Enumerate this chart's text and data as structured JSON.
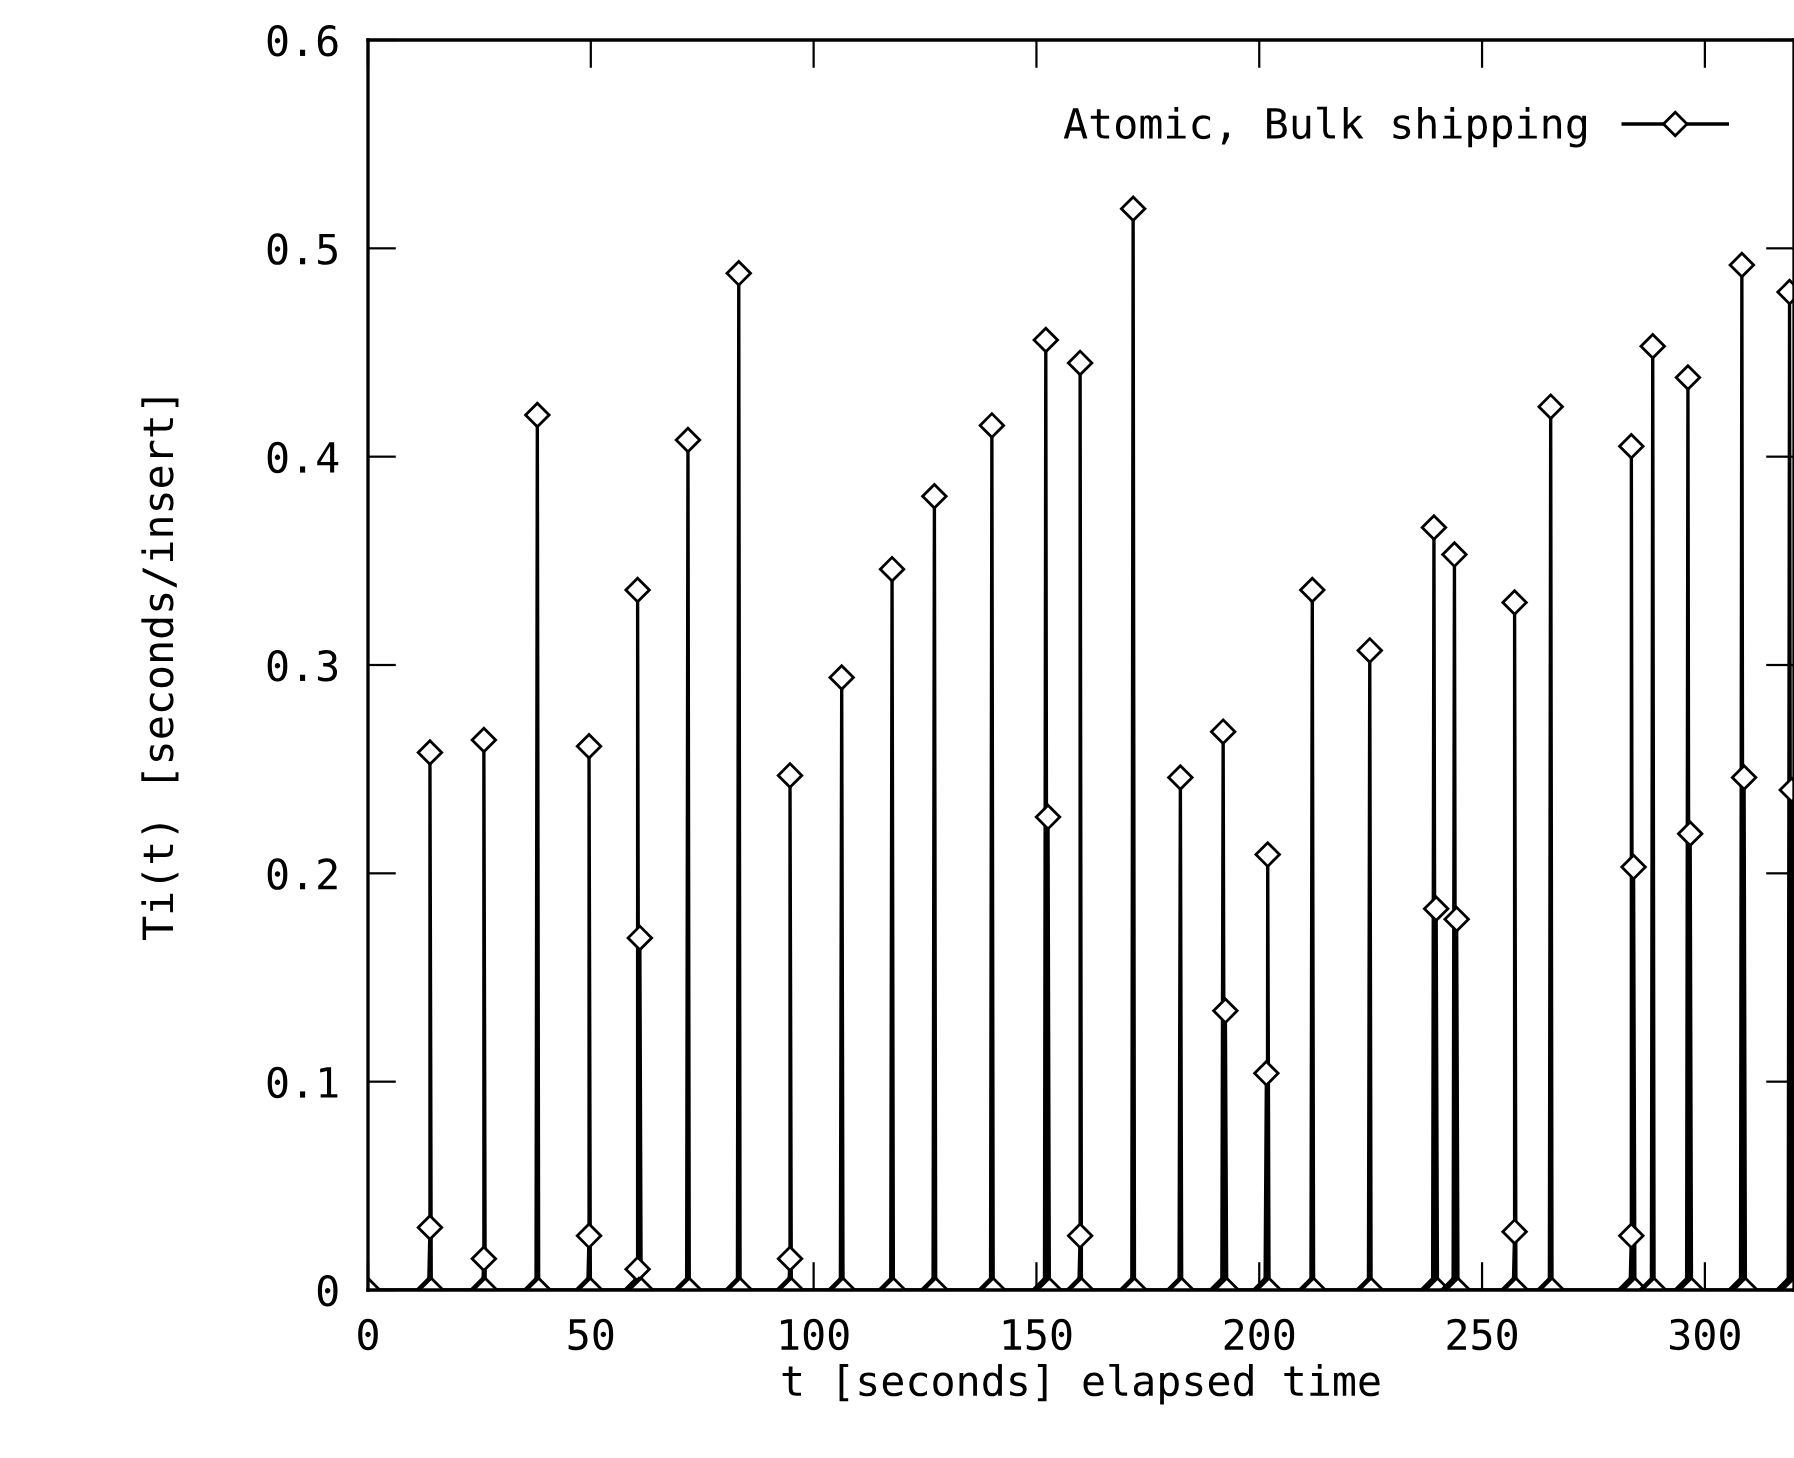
{
  "chart_data": {
    "type": "line",
    "xlabel": "t [seconds] elapsed time",
    "ylabel": "Ti(t) [seconds/insert]",
    "xlim": [
      0,
      320
    ],
    "xticks": [
      0,
      50,
      100,
      150,
      200,
      250,
      300
    ],
    "ylim": [
      0,
      0.6
    ],
    "yticks": [
      0,
      0.1,
      0.2,
      0.3,
      0.4,
      0.5,
      0.6
    ],
    "grid": false,
    "legend": "top right",
    "marker": "diamond",
    "line_style": "solid",
    "series": [
      {
        "name": "Atomic, Bulk shipping",
        "color": "#000000",
        "x": [
          0,
          13.6,
          13.9,
          13.9,
          14.2,
          25.7,
          26.0,
          26.0,
          26.3,
          37.7,
          38.0,
          38.3,
          49.3,
          49.6,
          49.6,
          49.9,
          60.2,
          60.5,
          60.5,
          60.8,
          61.0,
          61.3,
          71.5,
          71.8,
          72.1,
          82.9,
          83.2,
          83.5,
          94.4,
          94.7,
          94.7,
          95.0,
          106.0,
          106.3,
          106.6,
          117.3,
          117.6,
          117.9,
          126.8,
          127.1,
          127.4,
          139.7,
          140.0,
          140.3,
          151.8,
          152.1,
          152.4,
          152.6,
          152.9,
          159.5,
          159.8,
          159.8,
          160.1,
          171.4,
          171.7,
          172.0,
          182.0,
          182.3,
          182.6,
          191.6,
          191.9,
          192.2,
          192.4,
          192.7,
          201.3,
          201.6,
          201.8,
          201.9,
          202.2,
          211.6,
          211.9,
          212.2,
          224.5,
          224.8,
          225.1,
          238.9,
          239.2,
          239.5,
          239.7,
          240.0,
          243.5,
          243.8,
          244.1,
          244.3,
          244.6,
          257.0,
          257.3,
          257.3,
          257.6,
          265.1,
          265.4,
          265.7,
          283.2,
          283.5,
          283.5,
          283.8,
          284.0,
          284.3,
          288.0,
          288.3,
          288.6,
          295.9,
          296.2,
          296.5,
          296.7,
          297.0,
          308.0,
          308.3,
          308.6,
          308.8,
          309.1,
          318.7,
          319.0,
          319.3,
          319.5,
          319.8,
          320
        ],
        "values": [
          0,
          0,
          0.03,
          0.258,
          0,
          0,
          0.015,
          0.264,
          0,
          0,
          0.42,
          0,
          0,
          0.026,
          0.261,
          0,
          0,
          0.01,
          0.336,
          0,
          0.169,
          0,
          0,
          0.408,
          0,
          0,
          0.488,
          0,
          0,
          0.015,
          0.247,
          0,
          0,
          0.294,
          0,
          0,
          0.346,
          0,
          0,
          0.381,
          0,
          0,
          0.415,
          0,
          0,
          0.456,
          0,
          0.227,
          0,
          0,
          0.026,
          0.445,
          0,
          0,
          0.519,
          0,
          0,
          0.246,
          0,
          0,
          0.268,
          0,
          0.134,
          0,
          0,
          0.104,
          0,
          0.209,
          0,
          0,
          0.336,
          0,
          0,
          0.307,
          0,
          0,
          0.366,
          0,
          0.183,
          0,
          0,
          0.353,
          0,
          0.178,
          0,
          0,
          0.028,
          0.33,
          0,
          0,
          0.424,
          0,
          0,
          0.026,
          0.405,
          0,
          0.203,
          0,
          0,
          0.453,
          0,
          0,
          0.438,
          0,
          0.219,
          0,
          0,
          0.492,
          0,
          0.246,
          0,
          0,
          0.479,
          0,
          0.24,
          0,
          0
        ]
      }
    ]
  }
}
